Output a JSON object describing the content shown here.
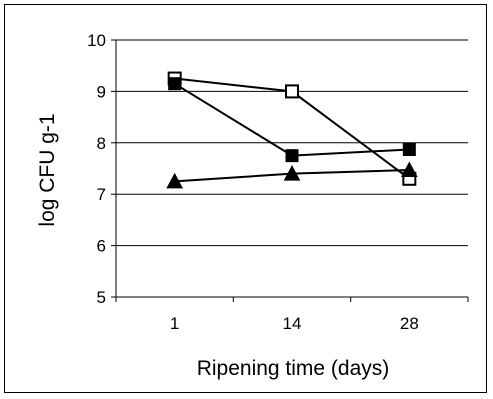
{
  "chart_data": {
    "type": "line",
    "title": "",
    "xlabel": "Ripening time (days)",
    "ylabel": "log CFU g-1",
    "categories": [
      "1",
      "14",
      "28"
    ],
    "ylim": [
      5,
      10
    ],
    "yticks": [
      "5",
      "6",
      "7",
      "8",
      "9",
      "10"
    ],
    "grid": "horizontal",
    "legend": "none",
    "series": [
      {
        "marker": "square-open",
        "values": [
          9.25,
          9.0,
          7.3
        ]
      },
      {
        "marker": "square-filled",
        "values": [
          9.15,
          7.75,
          7.87
        ]
      },
      {
        "marker": "triangle-filled",
        "values": [
          7.25,
          7.4,
          7.47
        ]
      }
    ],
    "colors": {
      "line": "#000000",
      "grid": "#000000",
      "background": "#ffffff"
    }
  }
}
